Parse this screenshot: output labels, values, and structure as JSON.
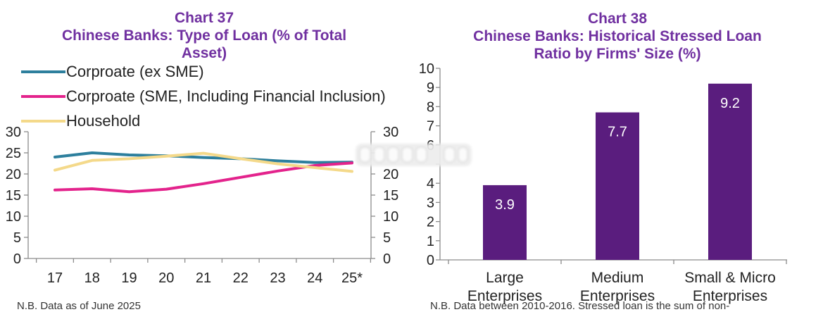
{
  "style": {
    "title_color": "#7030a0",
    "axis_color": "#8c8c8c",
    "bar_label_color": "#ffffff"
  },
  "chart_data": [
    {
      "type": "line",
      "chart_number": "Chart 37",
      "title": "Chinese Banks: Type of Loan (% of Total Asset)",
      "xlabel": "",
      "ylabel": "",
      "categories": [
        "17",
        "18",
        "19",
        "20",
        "21",
        "22",
        "23",
        "24",
        "25*"
      ],
      "series": [
        {
          "name": "Corproate (ex SME)",
          "color": "#2d7f9d",
          "values": [
            24.0,
            25.0,
            24.5,
            24.3,
            23.9,
            23.6,
            23.1,
            22.7,
            22.8
          ]
        },
        {
          "name": "Corproate (SME, Including Financial Inclusion)",
          "color": "#e3238c",
          "values": [
            16.2,
            16.5,
            15.8,
            16.4,
            17.7,
            19.2,
            20.7,
            22.0,
            22.6
          ]
        },
        {
          "name": "Household",
          "color": "#f4d98a",
          "values": [
            20.9,
            23.2,
            23.6,
            24.2,
            24.9,
            23.6,
            22.4,
            21.5,
            20.6
          ]
        }
      ],
      "ylim": [
        0,
        30
      ],
      "y_ticks": [
        0,
        5,
        10,
        15,
        20,
        25,
        30
      ],
      "y2_ticks": [
        0,
        5,
        10,
        15,
        20,
        30
      ],
      "grid": false,
      "legend": "top-left",
      "footnote": "N.B. Data as of June 2025"
    },
    {
      "type": "bar",
      "chart_number": "Chart 38",
      "title": "Chinese Banks: Historical Stressed Loan Ratio by Firms' Size (%)",
      "xlabel": "",
      "ylabel": "",
      "categories": [
        "Large Enterprises",
        "Medium Enterprises",
        "Small & Micro Enterprises"
      ],
      "values": [
        3.9,
        7.7,
        9.2
      ],
      "bar_color": "#5a1d7e",
      "ylim": [
        0,
        10
      ],
      "y_ticks": [
        0,
        1,
        2,
        3,
        4,
        6,
        7,
        8,
        9,
        10
      ],
      "grid": false,
      "legend": "none",
      "footnote": "N.B. Data between 2010-2016. Stressed loan is the sum of non-"
    }
  ]
}
